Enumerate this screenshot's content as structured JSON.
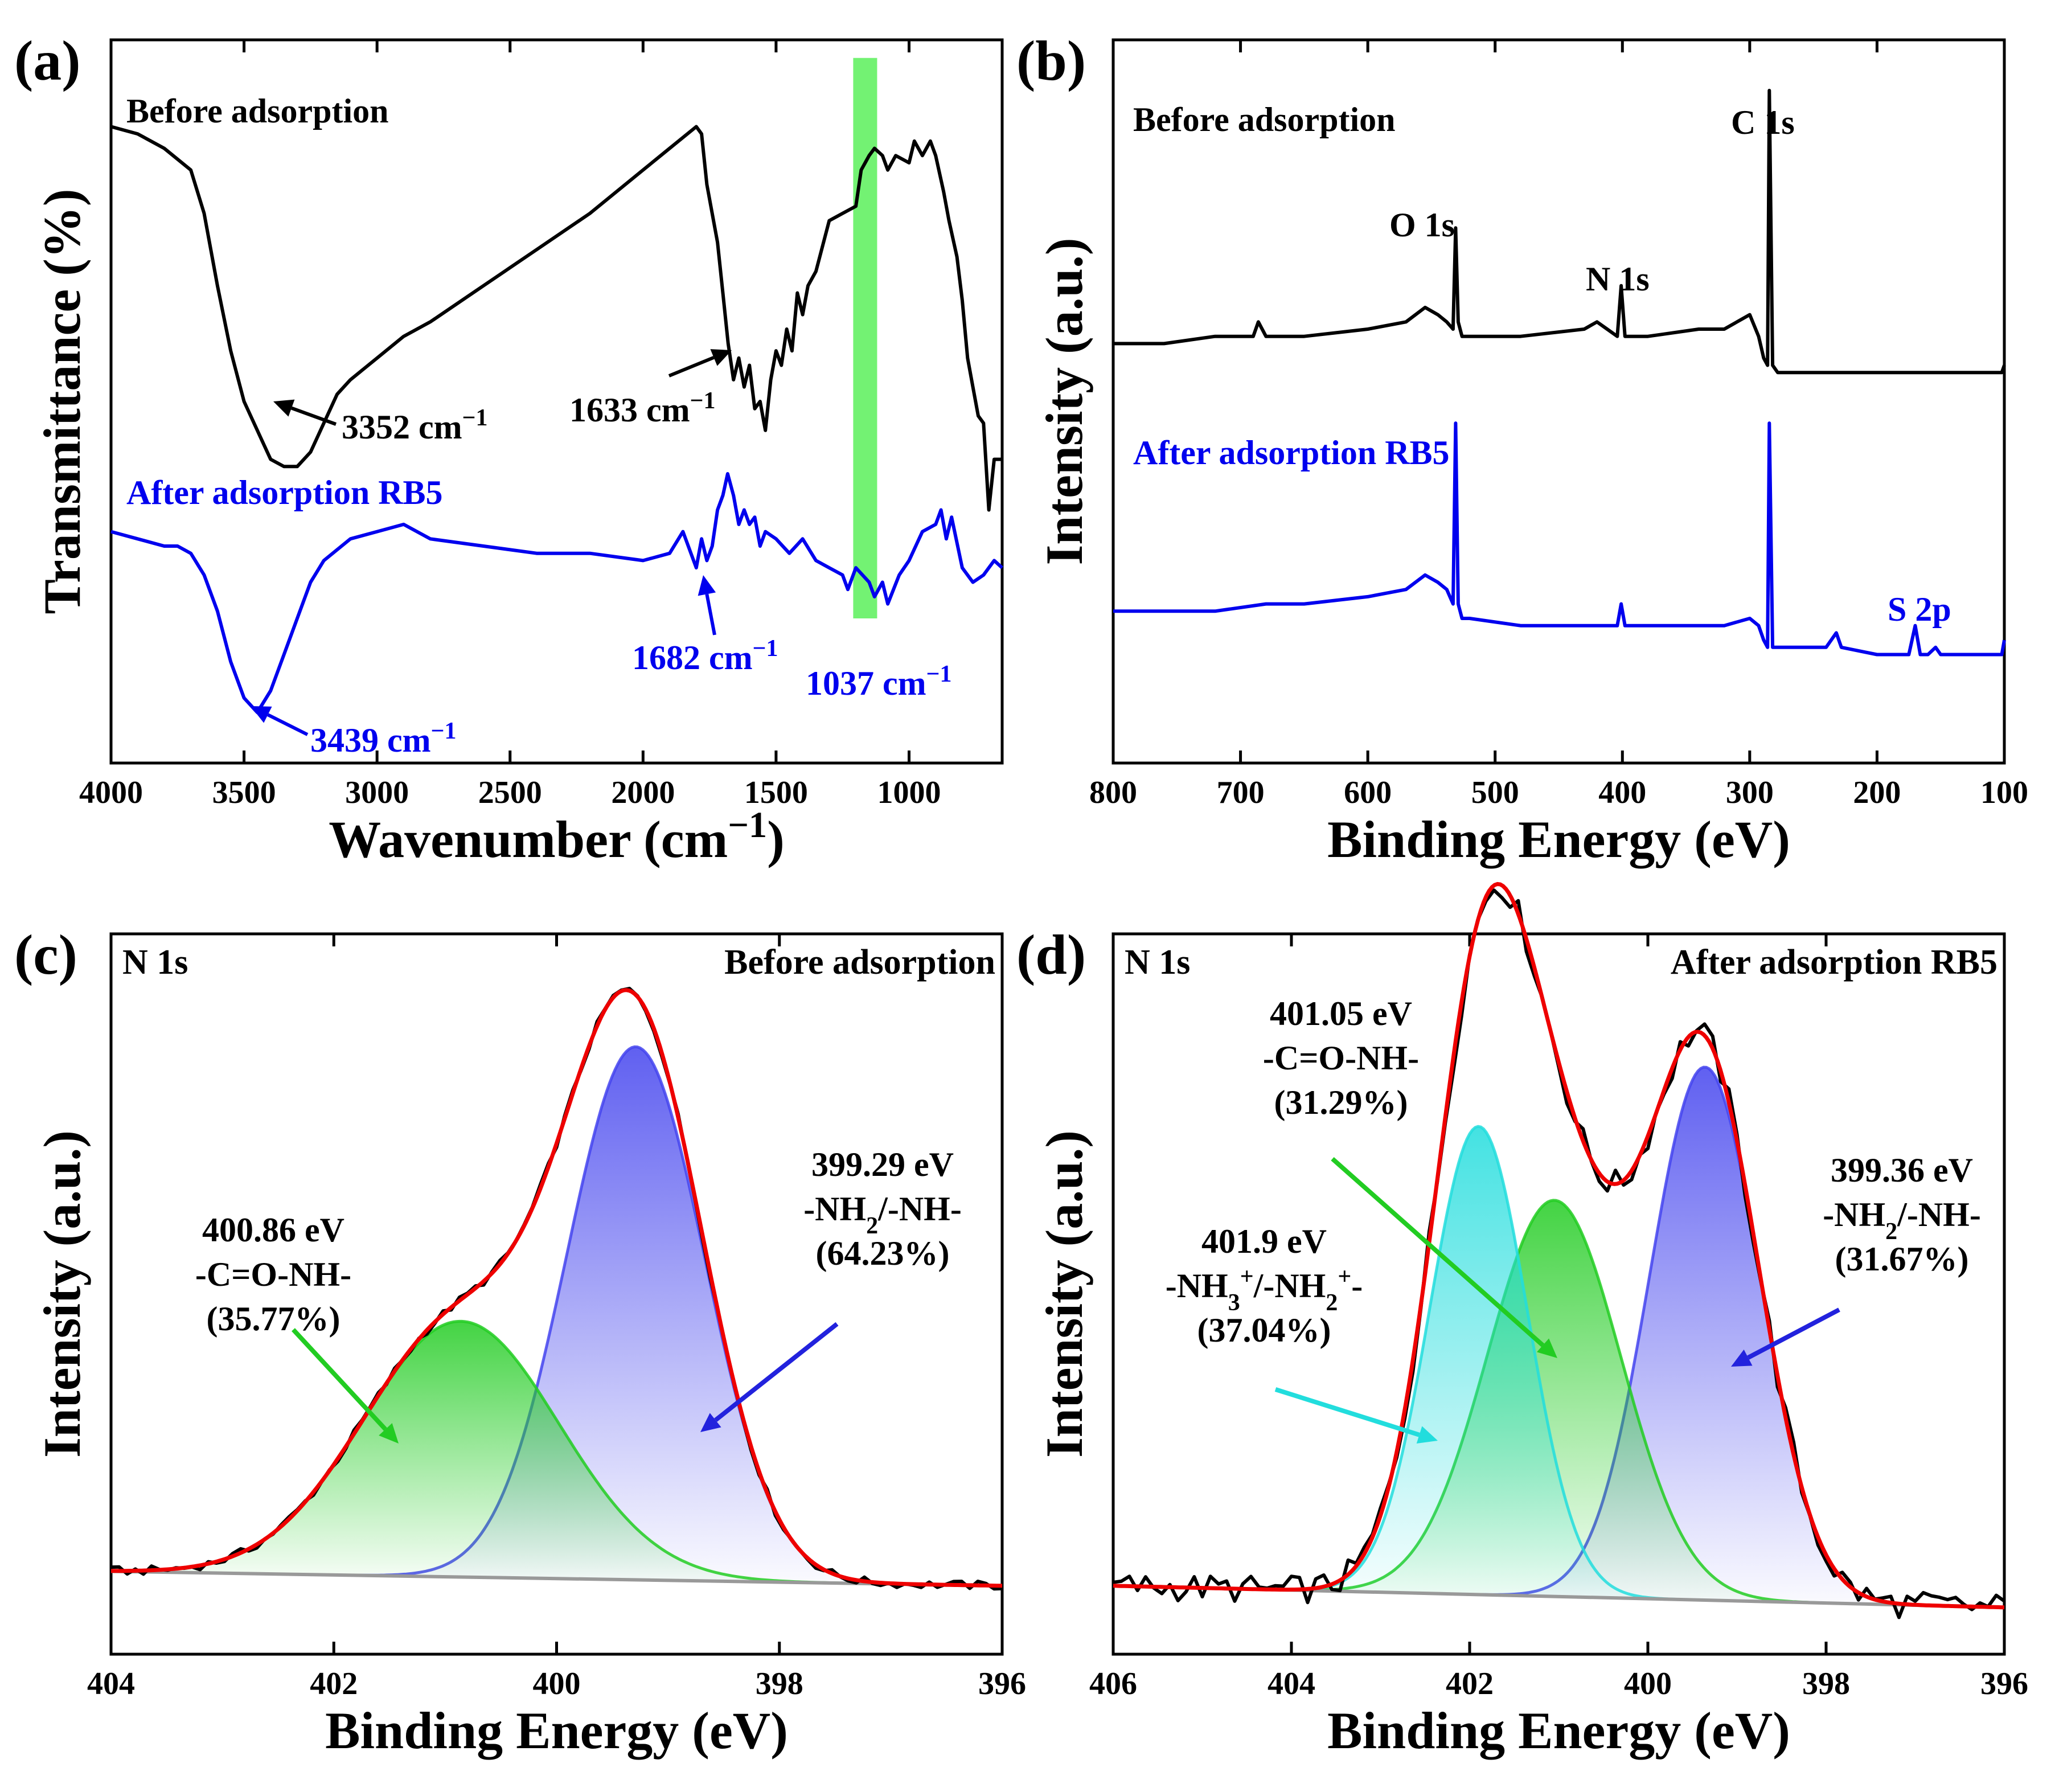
{
  "chart_data": [
    {
      "id": "a",
      "type": "line",
      "panel_label": "(a)",
      "xlabel": "Wavenumber (cm⁻¹)",
      "ylabel": "Transmittance (%)",
      "xlim": [
        4000,
        650
      ],
      "x_reversed": true,
      "xticks": [
        "4000",
        "3500",
        "3000",
        "2500",
        "2000",
        "1500",
        "1000"
      ],
      "highlight_band": [
        1210,
        1120
      ],
      "series": [
        {
          "name": "Before adsorption",
          "color": "#000000",
          "x": [
            4000,
            3900,
            3800,
            3700,
            3650,
            3600,
            3550,
            3500,
            3450,
            3400,
            3350,
            3300,
            3250,
            3200,
            3150,
            3100,
            3000,
            2900,
            2800,
            2600,
            2400,
            2200,
            2000,
            1900,
            1800,
            1780,
            1760,
            1720,
            1700,
            1680,
            1660,
            1640,
            1620,
            1600,
            1580,
            1560,
            1540,
            1520,
            1500,
            1480,
            1460,
            1440,
            1420,
            1400,
            1380,
            1350,
            1300,
            1250,
            1200,
            1180,
            1150,
            1130,
            1100,
            1080,
            1050,
            1000,
            980,
            950,
            920,
            900,
            870,
            850,
            820,
            800,
            780,
            760,
            740,
            720,
            700,
            680,
            650
          ],
          "y": [
            0.88,
            0.87,
            0.85,
            0.82,
            0.76,
            0.66,
            0.57,
            0.5,
            0.46,
            0.42,
            0.41,
            0.41,
            0.43,
            0.47,
            0.51,
            0.53,
            0.56,
            0.59,
            0.61,
            0.66,
            0.71,
            0.76,
            0.82,
            0.85,
            0.88,
            0.87,
            0.8,
            0.72,
            0.65,
            0.58,
            0.53,
            0.56,
            0.52,
            0.55,
            0.49,
            0.5,
            0.46,
            0.53,
            0.57,
            0.55,
            0.6,
            0.57,
            0.65,
            0.62,
            0.66,
            0.68,
            0.75,
            0.76,
            0.77,
            0.82,
            0.84,
            0.85,
            0.84,
            0.82,
            0.84,
            0.83,
            0.86,
            0.84,
            0.86,
            0.84,
            0.79,
            0.75,
            0.7,
            0.64,
            0.56,
            0.52,
            0.48,
            0.47,
            0.35,
            0.42,
            0.42
          ]
        },
        {
          "name": "After adsorption RB5",
          "color": "#0000ee",
          "x": [
            4000,
            3900,
            3800,
            3750,
            3700,
            3650,
            3600,
            3550,
            3500,
            3450,
            3400,
            3350,
            3300,
            3250,
            3200,
            3100,
            3000,
            2900,
            2800,
            2600,
            2400,
            2200,
            2000,
            1900,
            1850,
            1800,
            1780,
            1760,
            1740,
            1720,
            1700,
            1682,
            1660,
            1640,
            1620,
            1600,
            1580,
            1560,
            1540,
            1500,
            1450,
            1400,
            1350,
            1300,
            1250,
            1230,
            1200,
            1150,
            1130,
            1100,
            1080,
            1037,
            1000,
            950,
            900,
            880,
            860,
            840,
            800,
            760,
            720,
            700,
            680,
            650
          ],
          "y": [
            0.32,
            0.31,
            0.3,
            0.3,
            0.29,
            0.26,
            0.21,
            0.14,
            0.09,
            0.07,
            0.1,
            0.15,
            0.2,
            0.25,
            0.28,
            0.31,
            0.32,
            0.33,
            0.31,
            0.3,
            0.29,
            0.29,
            0.28,
            0.29,
            0.32,
            0.27,
            0.31,
            0.28,
            0.3,
            0.35,
            0.37,
            0.4,
            0.37,
            0.33,
            0.35,
            0.33,
            0.34,
            0.3,
            0.32,
            0.31,
            0.29,
            0.31,
            0.28,
            0.27,
            0.26,
            0.24,
            0.27,
            0.25,
            0.23,
            0.25,
            0.22,
            0.26,
            0.28,
            0.32,
            0.33,
            0.35,
            0.31,
            0.34,
            0.27,
            0.25,
            0.26,
            0.27,
            0.28,
            0.27
          ]
        }
      ],
      "annotations": [
        {
          "text": "Before adsorption",
          "color": "#000000"
        },
        {
          "text": "After adsorption RB5",
          "color": "#0000ee"
        },
        {
          "text": "3352 cm⁻¹",
          "color": "#000000"
        },
        {
          "text": "1633 cm⁻¹",
          "color": "#000000"
        },
        {
          "text": "1682 cm⁻¹",
          "color": "#0000ee"
        },
        {
          "text": "1037 cm⁻¹",
          "color": "#0000ee"
        },
        {
          "text": "3439 cm⁻¹",
          "color": "#0000ee"
        }
      ]
    },
    {
      "id": "b",
      "type": "line",
      "panel_label": "(b)",
      "xlabel": "Binding Energy (eV)",
      "ylabel": "Intensity (a.u.)",
      "xlim": [
        800,
        100
      ],
      "x_reversed": true,
      "xticks": [
        "800",
        "700",
        "600",
        "500",
        "400",
        "300",
        "200",
        "100"
      ],
      "series": [
        {
          "name": "Before adsorption",
          "color": "#000000",
          "x": [
            800,
            760,
            720,
            700,
            690,
            686,
            680,
            650,
            600,
            570,
            555,
            545,
            538,
            533,
            531,
            529,
            526,
            520,
            480,
            430,
            420,
            412,
            404,
            401,
            398,
            395,
            380,
            340,
            320,
            300,
            293,
            289,
            286,
            284.6,
            282,
            278,
            260,
            200,
            160,
            140,
            120,
            102,
            100
          ],
          "y": [
            0.58,
            0.58,
            0.59,
            0.59,
            0.59,
            0.61,
            0.59,
            0.59,
            0.6,
            0.61,
            0.63,
            0.62,
            0.61,
            0.6,
            0.74,
            0.61,
            0.59,
            0.59,
            0.59,
            0.6,
            0.61,
            0.6,
            0.59,
            0.66,
            0.59,
            0.59,
            0.59,
            0.6,
            0.6,
            0.62,
            0.59,
            0.56,
            0.55,
            0.93,
            0.55,
            0.54,
            0.54,
            0.54,
            0.54,
            0.54,
            0.54,
            0.54,
            0.55
          ]
        },
        {
          "name": "After adsorption RB5",
          "color": "#0000ee",
          "x": [
            800,
            760,
            720,
            680,
            650,
            600,
            570,
            555,
            545,
            538,
            533,
            531,
            529,
            526,
            520,
            480,
            430,
            412,
            404,
            401,
            398,
            395,
            380,
            340,
            320,
            300,
            293,
            289,
            286,
            284.6,
            282,
            278,
            240,
            232,
            228,
            200,
            175,
            170,
            166,
            160,
            154,
            150,
            140,
            120,
            102,
            100
          ],
          "y": [
            0.21,
            0.21,
            0.21,
            0.22,
            0.22,
            0.23,
            0.24,
            0.26,
            0.25,
            0.24,
            0.22,
            0.47,
            0.22,
            0.2,
            0.2,
            0.19,
            0.19,
            0.19,
            0.19,
            0.22,
            0.19,
            0.19,
            0.19,
            0.19,
            0.19,
            0.2,
            0.19,
            0.17,
            0.16,
            0.47,
            0.16,
            0.16,
            0.16,
            0.18,
            0.16,
            0.15,
            0.15,
            0.19,
            0.15,
            0.15,
            0.16,
            0.15,
            0.15,
            0.15,
            0.15,
            0.17
          ]
        }
      ],
      "annotations": [
        {
          "text": "Before adsorption",
          "color": "#000000"
        },
        {
          "text": "After adsorption RB5",
          "color": "#0000ee"
        },
        {
          "text": "O 1s",
          "color": "#000000"
        },
        {
          "text": "N 1s",
          "color": "#000000"
        },
        {
          "text": "C 1s",
          "color": "#000000"
        },
        {
          "text": "S 2p",
          "color": "#0000ee"
        }
      ]
    },
    {
      "id": "c",
      "type": "line",
      "panel_label": "(c)",
      "xlabel": "Binding Energy (eV)",
      "ylabel": "Intensity (a.u.)",
      "xlim": [
        404,
        396
      ],
      "x_reversed": true,
      "xticks": [
        "404",
        "402",
        "400",
        "398",
        "396"
      ],
      "corner_left": "N 1s",
      "corner_right": "Before adsorption",
      "baseline": {
        "start": 0.115,
        "end": 0.095
      },
      "components": [
        {
          "name": "-NH₂/-NH-",
          "center": 399.29,
          "sigma": 0.62,
          "amplitude": 0.74,
          "color": "#4444ee",
          "energy": "399.29 eV",
          "percent": "(64.23%)"
        },
        {
          "name": "-C=O-NH-",
          "center": 400.86,
          "sigma": 0.88,
          "amplitude": 0.355,
          "color": "#22cc22",
          "energy": "400.86 eV",
          "percent": "(35.77%)"
        }
      ],
      "series": [
        {
          "name": "Raw",
          "color": "#000000"
        },
        {
          "name": "Fit",
          "color": "#ee0000"
        }
      ],
      "labels": [
        {
          "lines": [
            "400.86 eV",
            "-C=O-NH-",
            "(35.77%)"
          ],
          "color": "#000000"
        },
        {
          "lines": [
            "399.29 eV",
            "-NH₂/-NH-",
            "(64.23%)"
          ],
          "color": "#000000"
        }
      ]
    },
    {
      "id": "d",
      "type": "line",
      "panel_label": "(d)",
      "xlabel": "Binding Energy (eV)",
      "ylabel": "Intensity (a.u.)",
      "xlim": [
        406,
        396
      ],
      "x_reversed": true,
      "xticks": [
        "406",
        "404",
        "402",
        "400",
        "398",
        "396"
      ],
      "corner_left": "N 1s",
      "corner_right": "After adsorption RB5",
      "baseline": {
        "start": 0.095,
        "end": 0.065
      },
      "components": [
        {
          "name": "-NH₂/-NH-",
          "center": 399.36,
          "sigma": 0.62,
          "amplitude": 0.74,
          "color": "#4444ee",
          "energy": "399.36 eV",
          "percent": "(31.67%)"
        },
        {
          "name": "-C=O-NH-",
          "center": 401.05,
          "sigma": 0.75,
          "amplitude": 0.55,
          "color": "#22cc22",
          "energy": "401.05 eV",
          "percent": "(31.29%)"
        },
        {
          "name": "-NH₃⁺/-NH₂⁺-",
          "center": 401.9,
          "sigma": 0.55,
          "amplitude": 0.65,
          "color": "#22dddd",
          "energy": "401.9 eV",
          "percent": "(37.04%)"
        }
      ],
      "series": [
        {
          "name": "Raw",
          "color": "#000000"
        },
        {
          "name": "Fit",
          "color": "#ee0000"
        }
      ],
      "labels": [
        {
          "lines": [
            "401.05 eV",
            "-C=O-NH-",
            "(31.29%)"
          ],
          "color": "#000000"
        },
        {
          "lines": [
            "401.9 eV",
            "-NH₃⁺/-NH₂⁺-",
            "(37.04%)"
          ],
          "color": "#000000"
        },
        {
          "lines": [
            "399.36 eV",
            "-NH₂/-NH-",
            "(31.67%)"
          ],
          "color": "#000000"
        }
      ]
    }
  ]
}
